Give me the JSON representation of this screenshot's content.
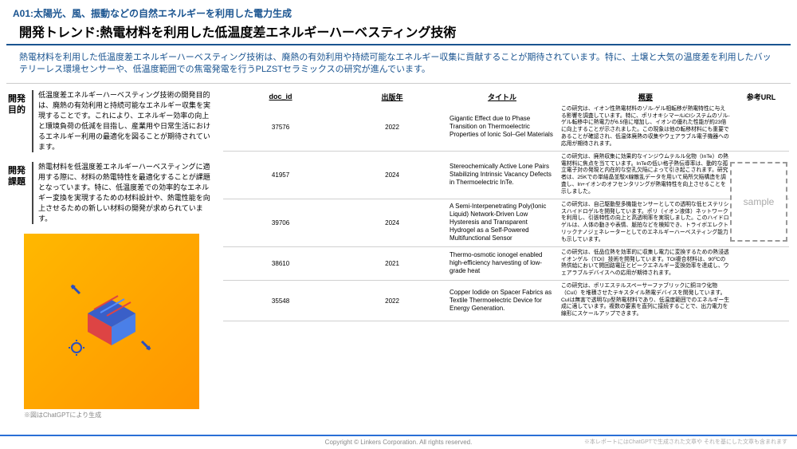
{
  "category": "A01:太陽光、風、振動などの自然エネルギーを利用した電力生成",
  "title": "開発トレンド:熱電材料を利用した低温度差エネルギーハーベスティング技術",
  "summary": "熱電材料を利用した低温度差エネルギーハーベスティング技術は、廃熱の有効利用や持続可能なエネルギー収集に貢献することが期待されています。特に、土壌と大気の温度差を利用したバッテリーレス環境センサーや、低温度範囲での焦電発電を行うPLZSTセラミックスの研究が進んでいます。",
  "sections": [
    {
      "label": "開発\n目的",
      "text": "低温度差エネルギーハーベスティング技術の開発目的は、廃熱の有効利用と持続可能なエネルギー収集を実現することです。これにより、エネルギー効率の向上と環境負荷の低減を目指し、産業用や日常生活におけるエネルギー利用の最適化を図ることが期待されています。"
    },
    {
      "label": "開発\n課題",
      "text": "熱電材料を低温度差エネルギーハーベスティングに適用する際に、材料の熱電特性を最適化することが課題となっています。特に、低温度差での効率的なエネルギー変換を実現するための材料設計や、熱電性能を向上させるための新しい材料の開発が求められています。"
    }
  ],
  "image_caption": "※図はChatGPTにより生成",
  "columns": [
    "doc_id",
    "出版年",
    "タイトル",
    "概要",
    "参考URL"
  ],
  "rows": [
    {
      "doc_id": "37576",
      "year": "2022",
      "title": "Gigantic Effect due to Phase Transition on Thermoelectric Properties of Ionic Sol–Gel Materials",
      "summary": "この研究は、イオン性熱電材料のゾル-ゲル相転移が熱電特性に与える影響を調査しています。特に、ポリオキシマー/LiClシステムのゾル-ゲル転移中に熱電力が6.5倍に増加し、イオンの優れた性能が約23倍に向上することが示されました。この現象は他の転移材料にも重要であることが確認され、低温体廃熱の収集やウェアラブル電子機器への応用が期待されます。"
    },
    {
      "doc_id": "41957",
      "year": "2024",
      "title": "Stereochemically Active Lone Pairs Stabilizing Intrinsic Vacancy Defects in Thermoelectric InTe.",
      "summary": "この研究は、廃熱収集に効果的なインジウムテルル化物（InTe）の熱電材料に焦点を当てています。InTeの低い格子熱伝導率は、動的な孤立電子対の発現と内在的な空孔欠陥によって引き起こされます。研究者は、25Kでの単結晶並駁X線散乱データを用いて局所欠陥構造を調査し、In+イオンのオフセンタリングが熱電特性を向上させることを示しました。"
    },
    {
      "doc_id": "39706",
      "year": "2024",
      "title": "A Semi-Interpenetrating Poly(Ionic Liquid) Network-Driven Low Hysteresis and Transparent Hydrogel as a Self-Powered Multifunctional Sensor",
      "summary": "この研究は、自己駆動型多機能センサーとしての透明な低ヒステリシスハイドロゲルを開発しています。ポリ（イオン液体）ネットワークを利用し、引張特性の向上と高透明率を実現しました。このハイドロゲルは、人体の動きや表情、脈拍などを検知でき、トライボエレクトリックナノジェネレーターとしてのエネルギーハーベスティング能力も示しています。"
    },
    {
      "doc_id": "38610",
      "year": "2021",
      "title": "Thermo-osmotic ionogel enabled high-efficiency harvesting of low-grade heat",
      "summary": "この研究は、低品位熱を効率的に収集し電力に変換するための熱浸透イオンゲル（TOI）技術を開発しています。TOI複合材料は、90ºCの熱供給において開回路電圧とピークエネルギー変換効率を達成し、ウェアラブルデバイスへの応用が期待されます。"
    },
    {
      "doc_id": "35548",
      "year": "2022",
      "title": "Copper Iodide on Spacer Fabrics as Textile Thermoelectric Device for Energy Generation.",
      "summary": "この研究は、ポリエステルスペーサーファブリックに銅ヨウ化物（CuI）を堆積させたテキスタイル熱電デバイスを開発しています。CuIは無害で透明なp型熱電材料であり、低温度範囲でのエネルギー生成に適しています。複数の要素を直列に接続することで、出力電力を線形にスケールアップできます。"
    }
  ],
  "sample_label": "sample",
  "copyright": "Copyright © Linkers Corporation. All rights reserved.",
  "footer_note": "※本レポートにはChatGPTで生成された文章や それを基にした文章も含まれます",
  "colors": {
    "primary": "#1a5490",
    "accent": "#2a6fd6",
    "illus_bg1": "#ffb800",
    "illus_bg2": "#ff9500"
  }
}
